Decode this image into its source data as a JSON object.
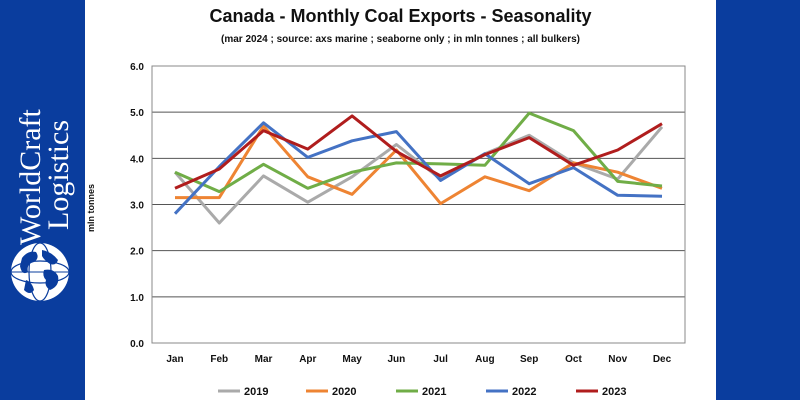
{
  "brand": {
    "name_line1": "WorldCraft",
    "name_line2": "Logistics",
    "color": "#0a3d9e"
  },
  "chart_data": {
    "type": "line",
    "title": "Canada - Monthly Coal Exports - Seasonality",
    "subtitle": "(mar 2024 ; source: axs marine ; seaborne only ; in mln tonnes ; all bulkers)",
    "xlabel": "",
    "ylabel": "mln tonnes",
    "ylim": [
      0,
      6
    ],
    "yticks": [
      "0.0",
      "1.0",
      "2.0",
      "3.0",
      "4.0",
      "5.0",
      "6.0"
    ],
    "grid": true,
    "legend_position": "bottom",
    "categories": [
      "Jan",
      "Feb",
      "Mar",
      "Apr",
      "May",
      "Jun",
      "Jul",
      "Aug",
      "Sep",
      "Oct",
      "Nov",
      "Dec"
    ],
    "series": [
      {
        "name": "2019",
        "color": "#aaaaaa",
        "values": [
          3.7,
          2.6,
          3.62,
          3.05,
          3.6,
          4.3,
          3.55,
          4.1,
          4.5,
          3.9,
          3.55,
          4.68
        ]
      },
      {
        "name": "2020",
        "color": "#ee8433",
        "values": [
          3.15,
          3.15,
          4.7,
          3.6,
          3.22,
          4.18,
          3.02,
          3.6,
          3.3,
          3.9,
          3.7,
          3.35
        ]
      },
      {
        "name": "2021",
        "color": "#70ad47",
        "values": [
          3.7,
          3.28,
          3.87,
          3.35,
          3.7,
          3.9,
          3.88,
          3.85,
          4.98,
          4.6,
          3.5,
          3.4
        ]
      },
      {
        "name": "2022",
        "color": "#4472c4",
        "values": [
          2.8,
          3.82,
          4.77,
          4.02,
          4.38,
          4.58,
          3.52,
          4.1,
          3.45,
          3.8,
          3.2,
          3.18
        ]
      },
      {
        "name": "2023",
        "color": "#b01d1d",
        "values": [
          3.35,
          3.77,
          4.6,
          4.2,
          4.92,
          4.15,
          3.62,
          4.08,
          4.45,
          3.85,
          4.18,
          4.75
        ]
      }
    ]
  }
}
